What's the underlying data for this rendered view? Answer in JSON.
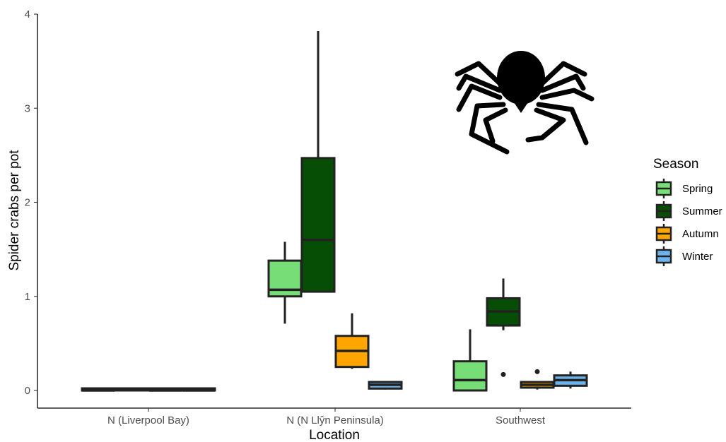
{
  "chart_data": {
    "type": "boxplot",
    "xlabel": "Location",
    "ylabel": "Spider crabs per pot",
    "ylim": [
      -0.18,
      4.0
    ],
    "yticks": [
      0,
      1,
      2,
      3,
      4
    ],
    "categories": [
      "N (Liverpool Bay)",
      "N (N Llŷn Peninsula)",
      "Southwest"
    ],
    "legend": {
      "title": "Season",
      "position": "right",
      "entries": [
        {
          "name": "Spring",
          "color": "#77dd77"
        },
        {
          "name": "Summer",
          "color": "#064d06"
        },
        {
          "name": "Autumn",
          "color": "#ffa500"
        },
        {
          "name": "Winter",
          "color": "#6cb4ee"
        }
      ]
    },
    "grid": false,
    "series": [
      {
        "name": "Spring",
        "color": "#77dd77",
        "boxes": [
          {
            "category": "N (Liverpool Bay)",
            "min": 0,
            "q1": 0,
            "median": 0,
            "q3": 0,
            "max": 0,
            "outliers": []
          },
          {
            "category": "N (N Llŷn Peninsula)",
            "min": 0.71,
            "q1": 1.0,
            "median": 1.07,
            "q3": 1.38,
            "max": 1.58,
            "outliers": []
          },
          {
            "category": "Southwest",
            "min": 0,
            "q1": 0,
            "median": 0.11,
            "q3": 0.31,
            "max": 0.65,
            "outliers": []
          }
        ]
      },
      {
        "name": "Summer",
        "color": "#064d06",
        "boxes": [
          {
            "category": "N (Liverpool Bay)",
            "min": 0,
            "q1": 0,
            "median": 0.01,
            "q3": 0.02,
            "max": 0.02,
            "outliers": []
          },
          {
            "category": "N (N Llŷn Peninsula)",
            "min": 1.04,
            "q1": 1.05,
            "median": 1.6,
            "q3": 2.47,
            "max": 3.82,
            "outliers": []
          },
          {
            "category": "Southwest",
            "min": 0.64,
            "q1": 0.69,
            "median": 0.84,
            "q3": 0.98,
            "max": 1.19,
            "outliers": [
              0.17
            ]
          }
        ]
      },
      {
        "name": "Autumn",
        "color": "#ffa500",
        "boxes": [
          {
            "category": "N (Liverpool Bay)",
            "min": 0,
            "q1": 0,
            "median": 0,
            "q3": 0,
            "max": 0,
            "outliers": []
          },
          {
            "category": "N (N Llŷn Peninsula)",
            "min": 0.23,
            "q1": 0.25,
            "median": 0.42,
            "q3": 0.58,
            "max": 0.82,
            "outliers": []
          },
          {
            "category": "Southwest",
            "min": 0.01,
            "q1": 0.03,
            "median": 0.06,
            "q3": 0.09,
            "max": 0.1,
            "outliers": [
              0.2
            ]
          }
        ]
      },
      {
        "name": "Winter",
        "color": "#6cb4ee",
        "boxes": [
          {
            "category": "N (Liverpool Bay)",
            "min": 0,
            "q1": 0,
            "median": 0,
            "q3": 0,
            "max": 0,
            "outliers": []
          },
          {
            "category": "N (N Llŷn Peninsula)",
            "min": 0.01,
            "q1": 0.02,
            "median": 0.06,
            "q3": 0.09,
            "max": 0.1,
            "outliers": []
          },
          {
            "category": "Southwest",
            "min": 0.02,
            "q1": 0.05,
            "median": 0.11,
            "q3": 0.16,
            "max": 0.2,
            "outliers": []
          }
        ]
      }
    ]
  },
  "decoration": {
    "silhouette_icon": "spider-crab-icon",
    "silhouette_color": "#000000"
  }
}
